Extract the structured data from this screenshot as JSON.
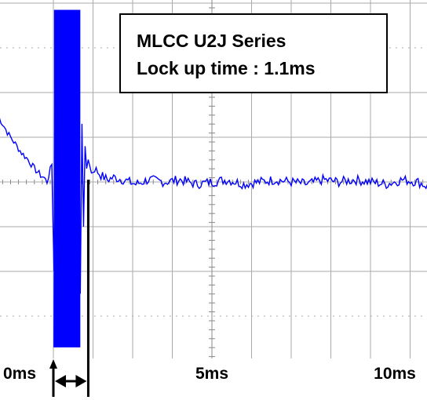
{
  "chart_data": {
    "type": "line",
    "title": "",
    "xlabel": "",
    "ylabel": "",
    "xlim": [
      -2.6,
      11.8
    ],
    "ylim": [
      -4,
      4
    ],
    "x_unit": "ms",
    "grid": true,
    "x_ticks": [
      {
        "value": 0,
        "label": "0ms"
      },
      {
        "value": 5,
        "label": "5ms"
      },
      {
        "value": 10,
        "label": "10ms"
      }
    ],
    "annotation": {
      "lines": [
        "MLCC U2J Series",
        "Lock up time : 1.1ms"
      ]
    },
    "lock_up_marker": {
      "start_ms": 0,
      "end_ms": 1.1
    },
    "trace_color": "#0000ff",
    "series": [
      {
        "x": [
          -1.8,
          -1.6,
          -1.4,
          -1.2,
          -1.0,
          -0.8,
          -0.6,
          -0.4,
          -0.3,
          -0.2,
          -0.05,
          0.02
        ],
        "values": [
          1.55,
          1.3,
          1.05,
          0.85,
          0.65,
          0.5,
          0.3,
          0.15,
          0.1,
          0.0,
          0.4,
          -2.0
        ]
      },
      {
        "x": [
          0.02,
          0.05,
          0.08,
          0.12,
          0.2,
          0.3,
          0.4,
          0.5,
          0.6,
          0.7,
          0.75,
          0.8,
          0.85,
          0.9,
          0.95,
          1.0,
          1.05,
          1.1,
          1.2,
          1.3,
          1.5,
          1.7,
          1.9,
          2.2,
          2.6,
          3.0,
          3.5,
          4.0,
          4.5,
          5.0,
          5.5,
          6.0,
          6.5,
          7.0,
          7.5,
          8.0,
          8.5,
          9.0,
          9.5,
          10.0,
          10.5,
          11.0,
          11.5,
          11.8
        ],
        "values": [
          -3.7,
          3.8,
          -3.7,
          3.6,
          -3.7,
          3.7,
          -3.6,
          3.6,
          -3.5,
          3.4,
          -0.5,
          2.0,
          -2.5,
          1.3,
          -1.0,
          0.8,
          0.3,
          0.5,
          0.2,
          0.3,
          0.15,
          0.05,
          0.1,
          0.05,
          -0.05,
          0.05,
          0.0,
          0.05,
          -0.05,
          0.0,
          0.05,
          -0.05,
          0.0,
          0.05,
          0.0,
          -0.05,
          0.05,
          0.0,
          0.05,
          0.0,
          -0.05,
          0.05,
          0.0,
          -0.1
        ]
      }
    ]
  }
}
